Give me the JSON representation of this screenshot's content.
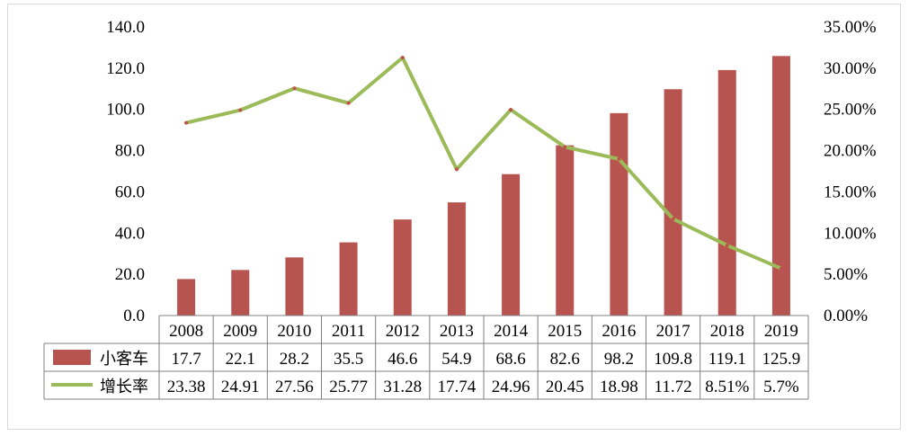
{
  "chart_data": {
    "type": "bar",
    "categories": [
      "2008",
      "2009",
      "2010",
      "2011",
      "2012",
      "2013",
      "2014",
      "2015",
      "2016",
      "2017",
      "2018",
      "2019"
    ],
    "series": [
      {
        "name": "小客车",
        "chart_type": "bar",
        "axis": "left",
        "values": [
          17.7,
          22.1,
          28.2,
          35.5,
          46.6,
          54.9,
          68.6,
          82.6,
          98.2,
          109.8,
          119.1,
          125.9
        ],
        "labels": [
          "17.7",
          "22.1",
          "28.2",
          "35.5",
          "46.6",
          "54.9",
          "68.6",
          "82.6",
          "98.2",
          "109.8",
          "119.1",
          "125.9"
        ],
        "color": "#b85450"
      },
      {
        "name": "增长率",
        "chart_type": "line",
        "axis": "right",
        "values": [
          23.38,
          24.91,
          27.56,
          25.77,
          31.28,
          17.74,
          24.96,
          20.45,
          18.98,
          11.72,
          8.51,
          5.7
        ],
        "labels": [
          "23.38",
          "24.91",
          "27.56",
          "25.77",
          "31.28",
          "17.74",
          "24.96",
          "20.45",
          "18.98",
          "11.72",
          "8.51%",
          "5.7%"
        ],
        "color": "#9bbb59",
        "marker_color": "#c0504d"
      }
    ],
    "y_left": {
      "ylim": [
        0,
        140
      ],
      "ticks": [
        "0.0",
        "20.0",
        "40.0",
        "60.0",
        "80.0",
        "100.0",
        "120.0",
        "140.0"
      ]
    },
    "y_right": {
      "ylim": [
        0,
        35
      ],
      "ticks": [
        "0.00%",
        "5.00%",
        "10.00%",
        "15.00%",
        "20.00%",
        "25.00%",
        "30.00%",
        "35.00%"
      ]
    },
    "data_table": true,
    "grid": false,
    "legend": "in-data-table"
  }
}
